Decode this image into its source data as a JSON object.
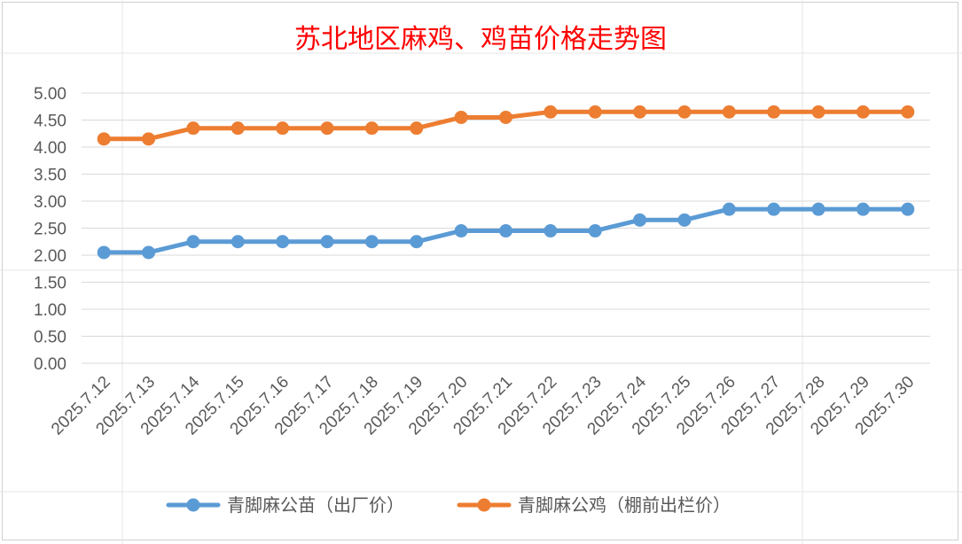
{
  "chart_data": {
    "type": "line",
    "title": "苏北地区麻鸡、鸡苗价格走势图",
    "title_color": "#ff0000",
    "categories": [
      "2025.7.12",
      "2025.7.13",
      "2025.7.14",
      "2025.7.15",
      "2025.7.16",
      "2025.7.17",
      "2025.7.18",
      "2025.7.19",
      "2025.7.20",
      "2025.7.21",
      "2025.7.22",
      "2025.7.23",
      "2025.7.24",
      "2025.7.25",
      "2025.7.26",
      "2025.7.27",
      "2025.7.28",
      "2025.7.29",
      "2025.7.30"
    ],
    "series": [
      {
        "name": "青脚麻公苗（出厂价）",
        "color": "#5b9bd5",
        "values": [
          2.05,
          2.05,
          2.25,
          2.25,
          2.25,
          2.25,
          2.25,
          2.25,
          2.45,
          2.45,
          2.45,
          2.45,
          2.65,
          2.65,
          2.85,
          2.85,
          2.85,
          2.85,
          2.85
        ]
      },
      {
        "name": "青脚麻公鸡（棚前出栏价）",
        "color": "#ed7d31",
        "values": [
          4.15,
          4.15,
          4.35,
          4.35,
          4.35,
          4.35,
          4.35,
          4.35,
          4.55,
          4.55,
          4.65,
          4.65,
          4.65,
          4.65,
          4.65,
          4.65,
          4.65,
          4.65,
          4.65
        ]
      }
    ],
    "ylim": [
      0,
      5
    ],
    "yticks": [
      "0.00",
      "0.50",
      "1.00",
      "1.50",
      "2.00",
      "2.50",
      "3.00",
      "3.50",
      "4.00",
      "4.50",
      "5.00"
    ],
    "grid": true,
    "legend_position": "bottom"
  }
}
